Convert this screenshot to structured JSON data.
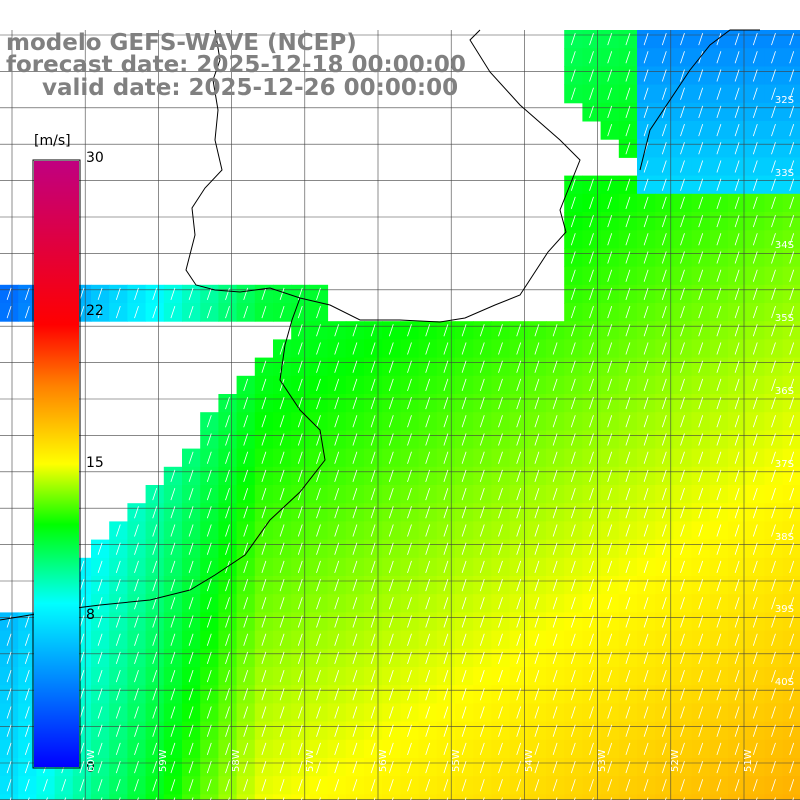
{
  "title": {
    "line1": "modelo GEFS-WAVE (NCEP)",
    "line2": "forecast date: 2025-12-18 00:00:00",
    "line3": "valid date: 2025-12-26 00:00:00"
  },
  "colorbar": {
    "unit": "[m/s]",
    "ticks": [
      "30",
      "22",
      "15",
      "8",
      "0"
    ],
    "tick_values": [
      30,
      22,
      15,
      8,
      0
    ],
    "range": [
      0,
      30
    ],
    "colors": [
      "#0000ff",
      "#00ffff",
      "#00ff00",
      "#ffff00",
      "#ff8000",
      "#ff0000",
      "#c00080"
    ]
  },
  "map": {
    "variable": "wind speed",
    "lat_labels": [
      "32S",
      "33S",
      "34S",
      "35S",
      "36S",
      "37S",
      "38S",
      "39S",
      "40S"
    ],
    "lon_labels": [
      "60W",
      "59W",
      "58W",
      "57W",
      "56W",
      "55W",
      "54W",
      "53W",
      "52W",
      "51W"
    ],
    "land_color": "#ffffff",
    "grid_color": "#404040",
    "arrow_color": "#ffffff"
  }
}
